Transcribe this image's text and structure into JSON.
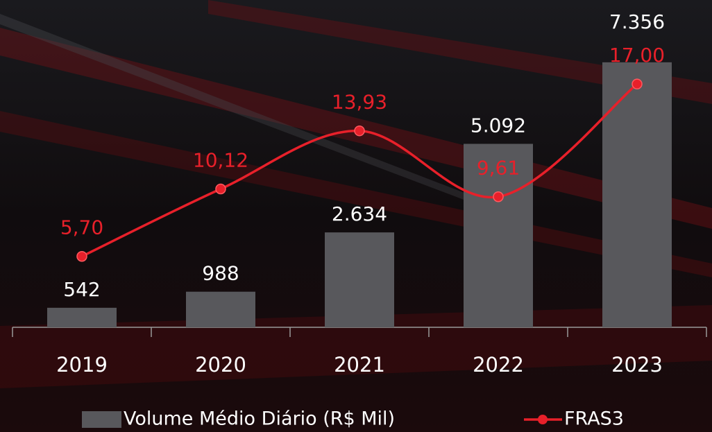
{
  "chart_data": {
    "type": "bar",
    "categories": [
      "2019",
      "2020",
      "2021",
      "2022",
      "2023"
    ],
    "series": [
      {
        "name": "Volume Médio Diário (R$ Mil)",
        "type": "bar",
        "color": "#58585c",
        "values": [
          542,
          988,
          2634,
          5092,
          7356
        ],
        "value_labels": [
          "542",
          "988",
          "2.634",
          "5.092",
          "7.356"
        ]
      },
      {
        "name": "FRAS3",
        "type": "line",
        "axis": "y2",
        "color": "#e8202a",
        "values": [
          5.7,
          10.12,
          13.93,
          9.61,
          17.0
        ],
        "value_labels": [
          "5,70",
          "10,12",
          "13,93",
          "9,61",
          "17,00"
        ]
      }
    ],
    "ylim": [
      0,
      8700
    ],
    "y2lim": [
      1.05,
      21.6
    ],
    "legend": "bottom"
  }
}
